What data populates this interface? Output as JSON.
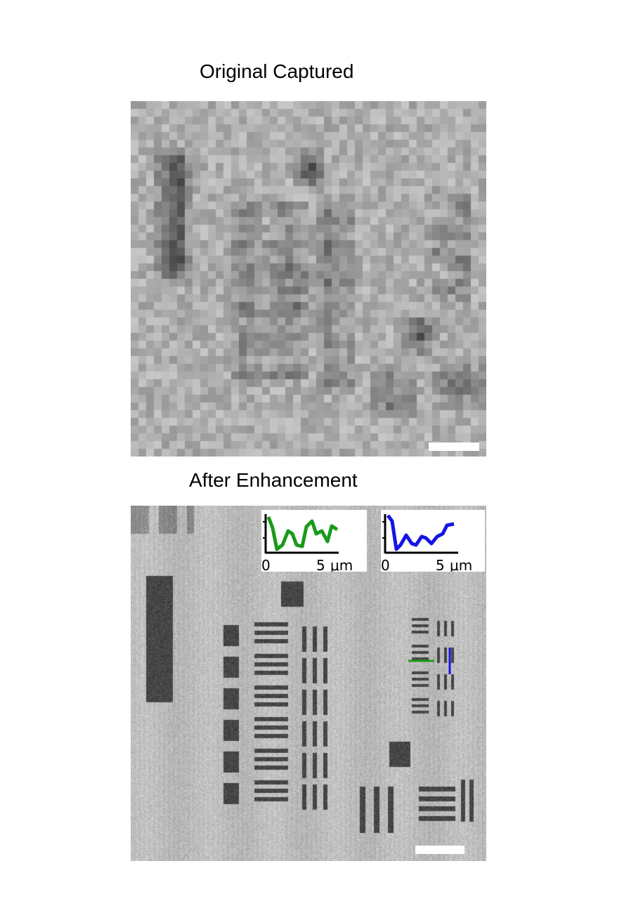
{
  "titles": {
    "top": "Original Captured",
    "bottom": "After Enhancement"
  },
  "insets": [
    {
      "color": "#1a9a1a",
      "tick_start": "0",
      "tick_end": "5",
      "unit": "μm"
    },
    {
      "color": "#1414e6",
      "tick_start": "0",
      "tick_end": "5",
      "unit": "μm"
    }
  ],
  "colors": {
    "background": "#ffffff",
    "scalebar": "#ffffff",
    "line_profile_horizontal": "#1a9a1a",
    "line_profile_vertical": "#1414e6"
  }
}
